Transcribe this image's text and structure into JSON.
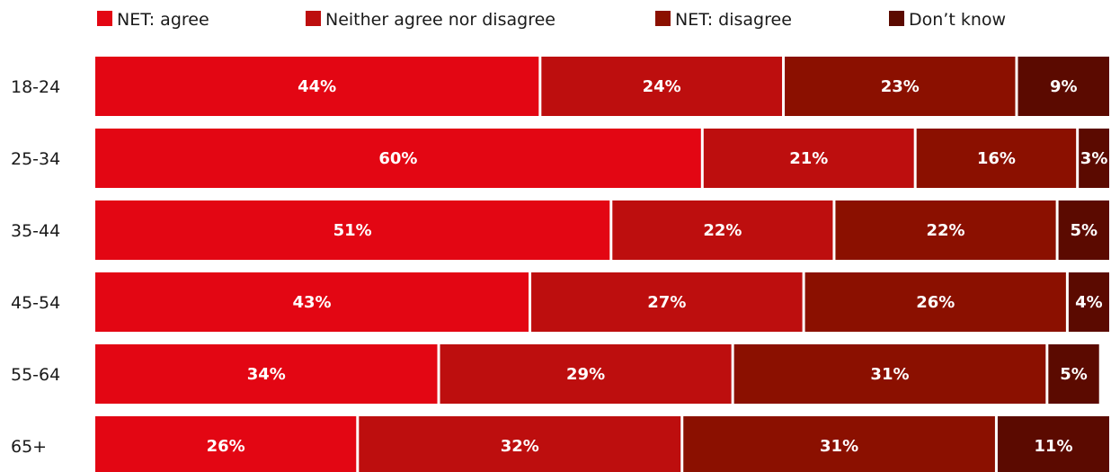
{
  "chart_data": {
    "type": "bar",
    "orientation": "horizontal",
    "stacked": true,
    "percent_scale": true,
    "title": "",
    "xlabel": "",
    "ylabel": "",
    "xlim": [
      0,
      100
    ],
    "grid": false,
    "legend_position": "top",
    "categories": [
      "18-24",
      "25-34",
      "35-44",
      "45-54",
      "55-64",
      "65+"
    ],
    "series": [
      {
        "name": "NET: agree",
        "color": "#e30613",
        "values": [
          44,
          60,
          51,
          43,
          34,
          26
        ]
      },
      {
        "name": "Neither agree nor disagree",
        "color": "#bd0e0e",
        "values": [
          24,
          21,
          22,
          27,
          29,
          32
        ]
      },
      {
        "name": "NET: disagree",
        "color": "#8b1000",
        "values": [
          23,
          16,
          22,
          26,
          31,
          31
        ]
      },
      {
        "name": "Don’t know",
        "color": "#5b0a00",
        "values": [
          9,
          3,
          5,
          4,
          5,
          11
        ]
      }
    ],
    "value_label_suffix": "%"
  }
}
